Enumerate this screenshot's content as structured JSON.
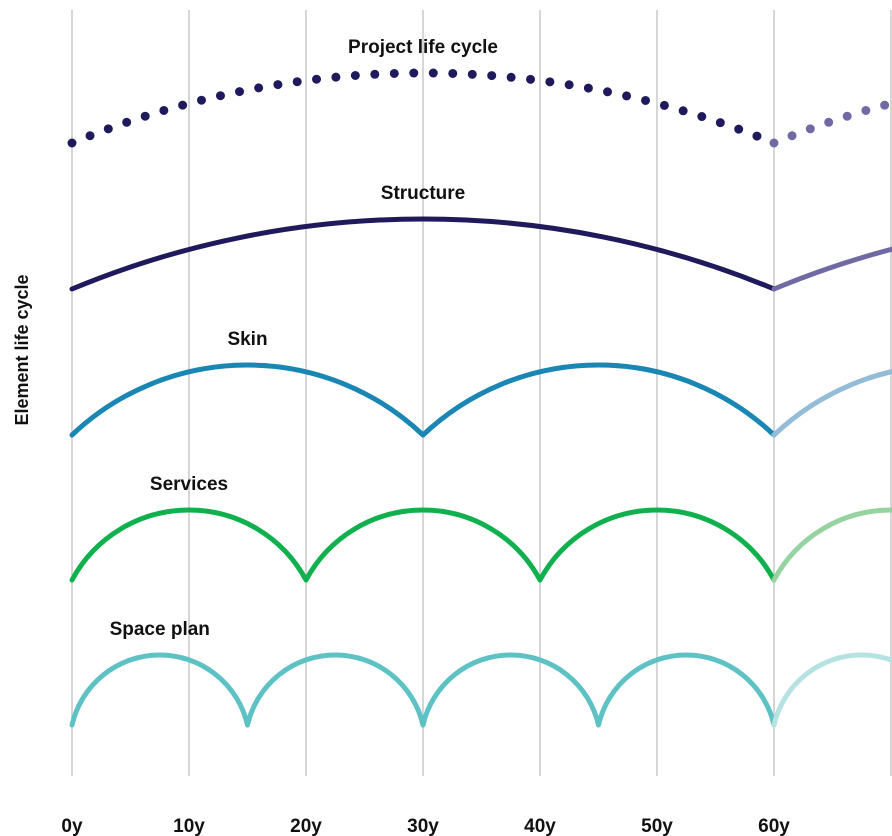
{
  "chart_data": {
    "type": "line",
    "ylabel": "Element life cycle",
    "xlabel": "",
    "x_ticks": [
      "0y",
      "10y",
      "20y",
      "30y",
      "40y",
      "50y",
      "60y"
    ],
    "x_tick_values": [
      0,
      10,
      20,
      30,
      40,
      50,
      60
    ],
    "xlim": [
      0,
      70
    ],
    "grid": "vertical",
    "series": [
      {
        "name": "Project life cycle",
        "cycle_years": 60,
        "style": "dotted",
        "color": "#1e1a5c",
        "faded_color": "#6f6aa3"
      },
      {
        "name": "Structure",
        "cycle_years": 60,
        "style": "solid",
        "color": "#1e1a5c",
        "faded_color": "#6f6aa3"
      },
      {
        "name": "Skin",
        "cycle_years": 30,
        "style": "solid",
        "color": "#1a86b4",
        "faded_color": "#93bcd6"
      },
      {
        "name": "Services",
        "cycle_years": 20,
        "style": "solid",
        "color": "#10b04e",
        "faded_color": "#95d3a0"
      },
      {
        "name": "Space plan",
        "cycle_years": 15,
        "style": "solid",
        "color": "#5ec2c4",
        "faded_color": "#b6e2e2"
      }
    ],
    "gridline_color": "#cccccc"
  }
}
